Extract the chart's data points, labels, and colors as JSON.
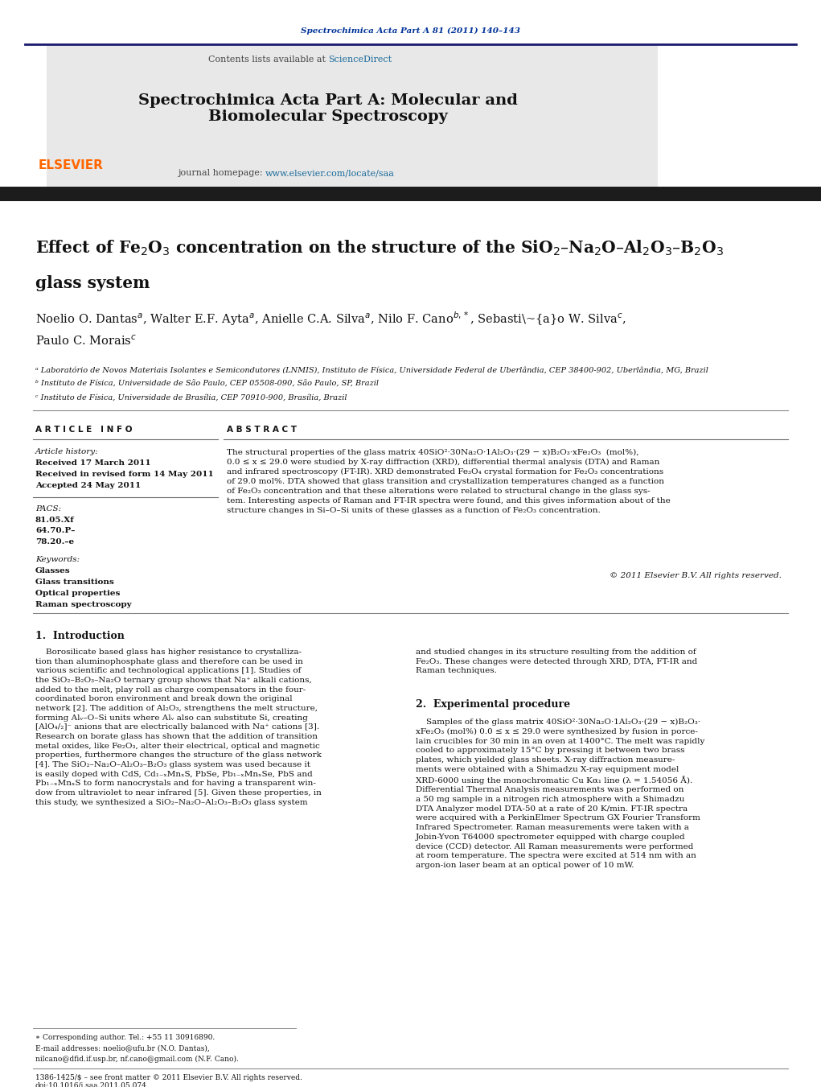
{
  "page_width": 10.21,
  "page_height": 13.51,
  "background_color": "#ffffff",
  "header_journal_ref": "Spectrochimica Acta Part A 81 (2011) 140–143",
  "header_journal_ref_color": "#003399",
  "journal_name": "Spectrochimica Acta Part A: Molecular and\nBiomolecular Spectroscopy",
  "journal_homepage_text": "journal homepage: ",
  "journal_homepage_url": "www.elsevier.com/locate/saa",
  "contents_text": "Contents lists available at ",
  "sciencedirect_text": "ScienceDirect",
  "header_bg_color": "#e8e8e8",
  "separator_color": "#1a1a6e",
  "elsevier_color": "#ff6600",
  "affiliation_a": "ᵃ Laboratório de Novos Materiais Isolantes e Semicondutores (LNMIS), Instituto de Física, Universidade Federal de Uberlândia, CEP 38400-902, Uberlândia, MG, Brazil",
  "affiliation_b": "ᵇ Instituto de Física, Universidade de São Paulo, CEP 05508-090, São Paulo, SP, Brazil",
  "affiliation_c": "ᶜ Instituto de Física, Universidade de Brasília, CEP 70910-900, Brasília, Brazil",
  "article_info_header": "A R T I C L E   I N F O",
  "abstract_header": "A B S T R A C T",
  "article_history_label": "Article history:",
  "received": "Received 17 March 2011",
  "received_revised": "Received in revised form 14 May 2011",
  "accepted": "Accepted 24 May 2011",
  "pacs_label": "PACS:",
  "pacs_codes": [
    "81.05.Xf",
    "64.70.P–",
    "78.20.–e"
  ],
  "keywords_label": "Keywords:",
  "keywords": [
    "Glasses",
    "Glass transitions",
    "Optical properties",
    "Raman spectroscopy"
  ],
  "abstract_copyright": "© 2011 Elsevier B.V. All rights reserved.",
  "intro_header": "1.  Introduction",
  "exp_header": "2.  Experimental procedure",
  "footer_text1": "∗ Corresponding author. Tel.: +55 11 30916890.",
  "footer_text2": "E-mail addresses: noelio@ufu.br (N.O. Dantas),",
  "footer_text3": "nilcano@dfid.if.usp.br, nf.cano@gmail.com (N.F. Cano).",
  "footer_bottom1": "1386-1425/$ – see front matter © 2011 Elsevier B.V. All rights reserved.",
  "footer_bottom2": "doi:10.1016/j.saa.2011.05.074"
}
